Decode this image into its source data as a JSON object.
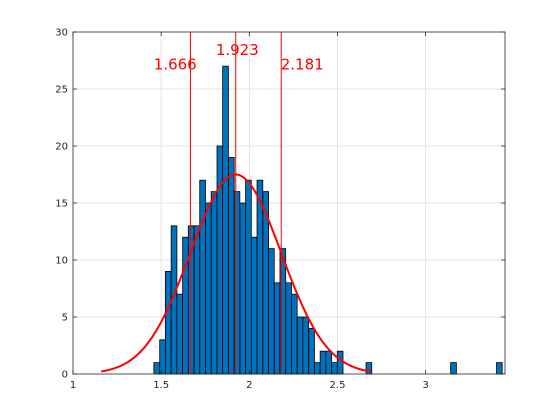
{
  "chart_data": {
    "type": "bar",
    "xlim": [
      1,
      3.45
    ],
    "ylim": [
      0,
      30
    ],
    "x_ticks": [
      1,
      1.5,
      2,
      2.5,
      3
    ],
    "x_tick_labels": [
      "1",
      "1.5",
      "2",
      "2.5",
      "3"
    ],
    "y_ticks": [
      0,
      5,
      10,
      15,
      20,
      25,
      30
    ],
    "y_tick_labels": [
      "0",
      "5",
      "10",
      "15",
      "20",
      "25",
      "30"
    ],
    "grid": true,
    "bar_color": "#0072bd",
    "fit_color": "#ff0000",
    "bin_width": 0.0325,
    "bins": [
      {
        "x": 1.475,
        "count": 1
      },
      {
        "x": 1.508,
        "count": 3
      },
      {
        "x": 1.54,
        "count": 9
      },
      {
        "x": 1.573,
        "count": 13
      },
      {
        "x": 1.605,
        "count": 7
      },
      {
        "x": 1.638,
        "count": 12
      },
      {
        "x": 1.67,
        "count": 13
      },
      {
        "x": 1.703,
        "count": 13
      },
      {
        "x": 1.735,
        "count": 17
      },
      {
        "x": 1.768,
        "count": 15
      },
      {
        "x": 1.8,
        "count": 16
      },
      {
        "x": 1.833,
        "count": 20
      },
      {
        "x": 1.865,
        "count": 27
      },
      {
        "x": 1.898,
        "count": 19
      },
      {
        "x": 1.93,
        "count": 16
      },
      {
        "x": 1.963,
        "count": 15
      },
      {
        "x": 1.995,
        "count": 17
      },
      {
        "x": 2.028,
        "count": 12
      },
      {
        "x": 2.06,
        "count": 17
      },
      {
        "x": 2.093,
        "count": 16
      },
      {
        "x": 2.125,
        "count": 11
      },
      {
        "x": 2.158,
        "count": 8
      },
      {
        "x": 2.19,
        "count": 11
      },
      {
        "x": 2.223,
        "count": 8
      },
      {
        "x": 2.255,
        "count": 7
      },
      {
        "x": 2.288,
        "count": 5
      },
      {
        "x": 2.32,
        "count": 5
      },
      {
        "x": 2.353,
        "count": 4
      },
      {
        "x": 2.385,
        "count": 1
      },
      {
        "x": 2.418,
        "count": 2
      },
      {
        "x": 2.45,
        "count": 2
      },
      {
        "x": 2.483,
        "count": 1
      },
      {
        "x": 2.515,
        "count": 2
      },
      {
        "x": 2.678,
        "count": 1
      },
      {
        "x": 3.158,
        "count": 1
      },
      {
        "x": 3.418,
        "count": 1
      }
    ],
    "fit_curve": {
      "distribution": "normal",
      "mean": 1.923,
      "std": 0.258,
      "peak": 17.5,
      "x_range": [
        1.16,
        2.69
      ]
    },
    "vertical_lines": [
      {
        "x": 1.666,
        "label": "1.666",
        "label_x": 1.58,
        "label_y": 26.7,
        "anchor": "middle"
      },
      {
        "x": 1.923,
        "label": "1.923",
        "label_x": 1.81,
        "label_y": 28.0,
        "anchor": "start"
      },
      {
        "x": 2.181,
        "label": "2.181",
        "label_x": 2.3,
        "label_y": 26.7,
        "anchor": "middle"
      }
    ]
  }
}
